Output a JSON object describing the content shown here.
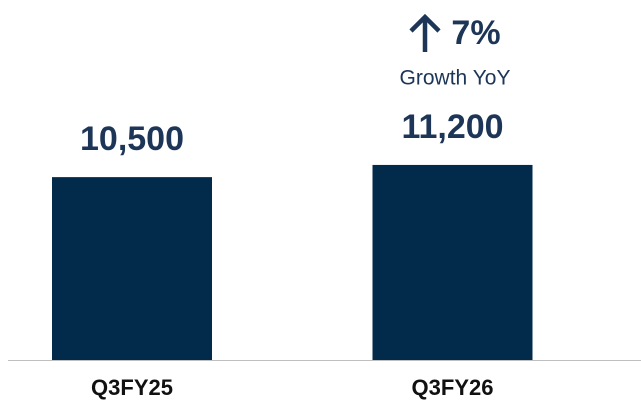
{
  "chart_data": {
    "type": "bar",
    "categories": [
      "Q3FY25",
      "Q3FY26"
    ],
    "values": [
      10500,
      11200
    ],
    "value_labels": [
      "10,500",
      "11,200"
    ],
    "color": "#022a4b",
    "ylim": [
      0,
      12000
    ],
    "annotation": "7%",
    "annotation_subtitle": "Growth YoY"
  }
}
